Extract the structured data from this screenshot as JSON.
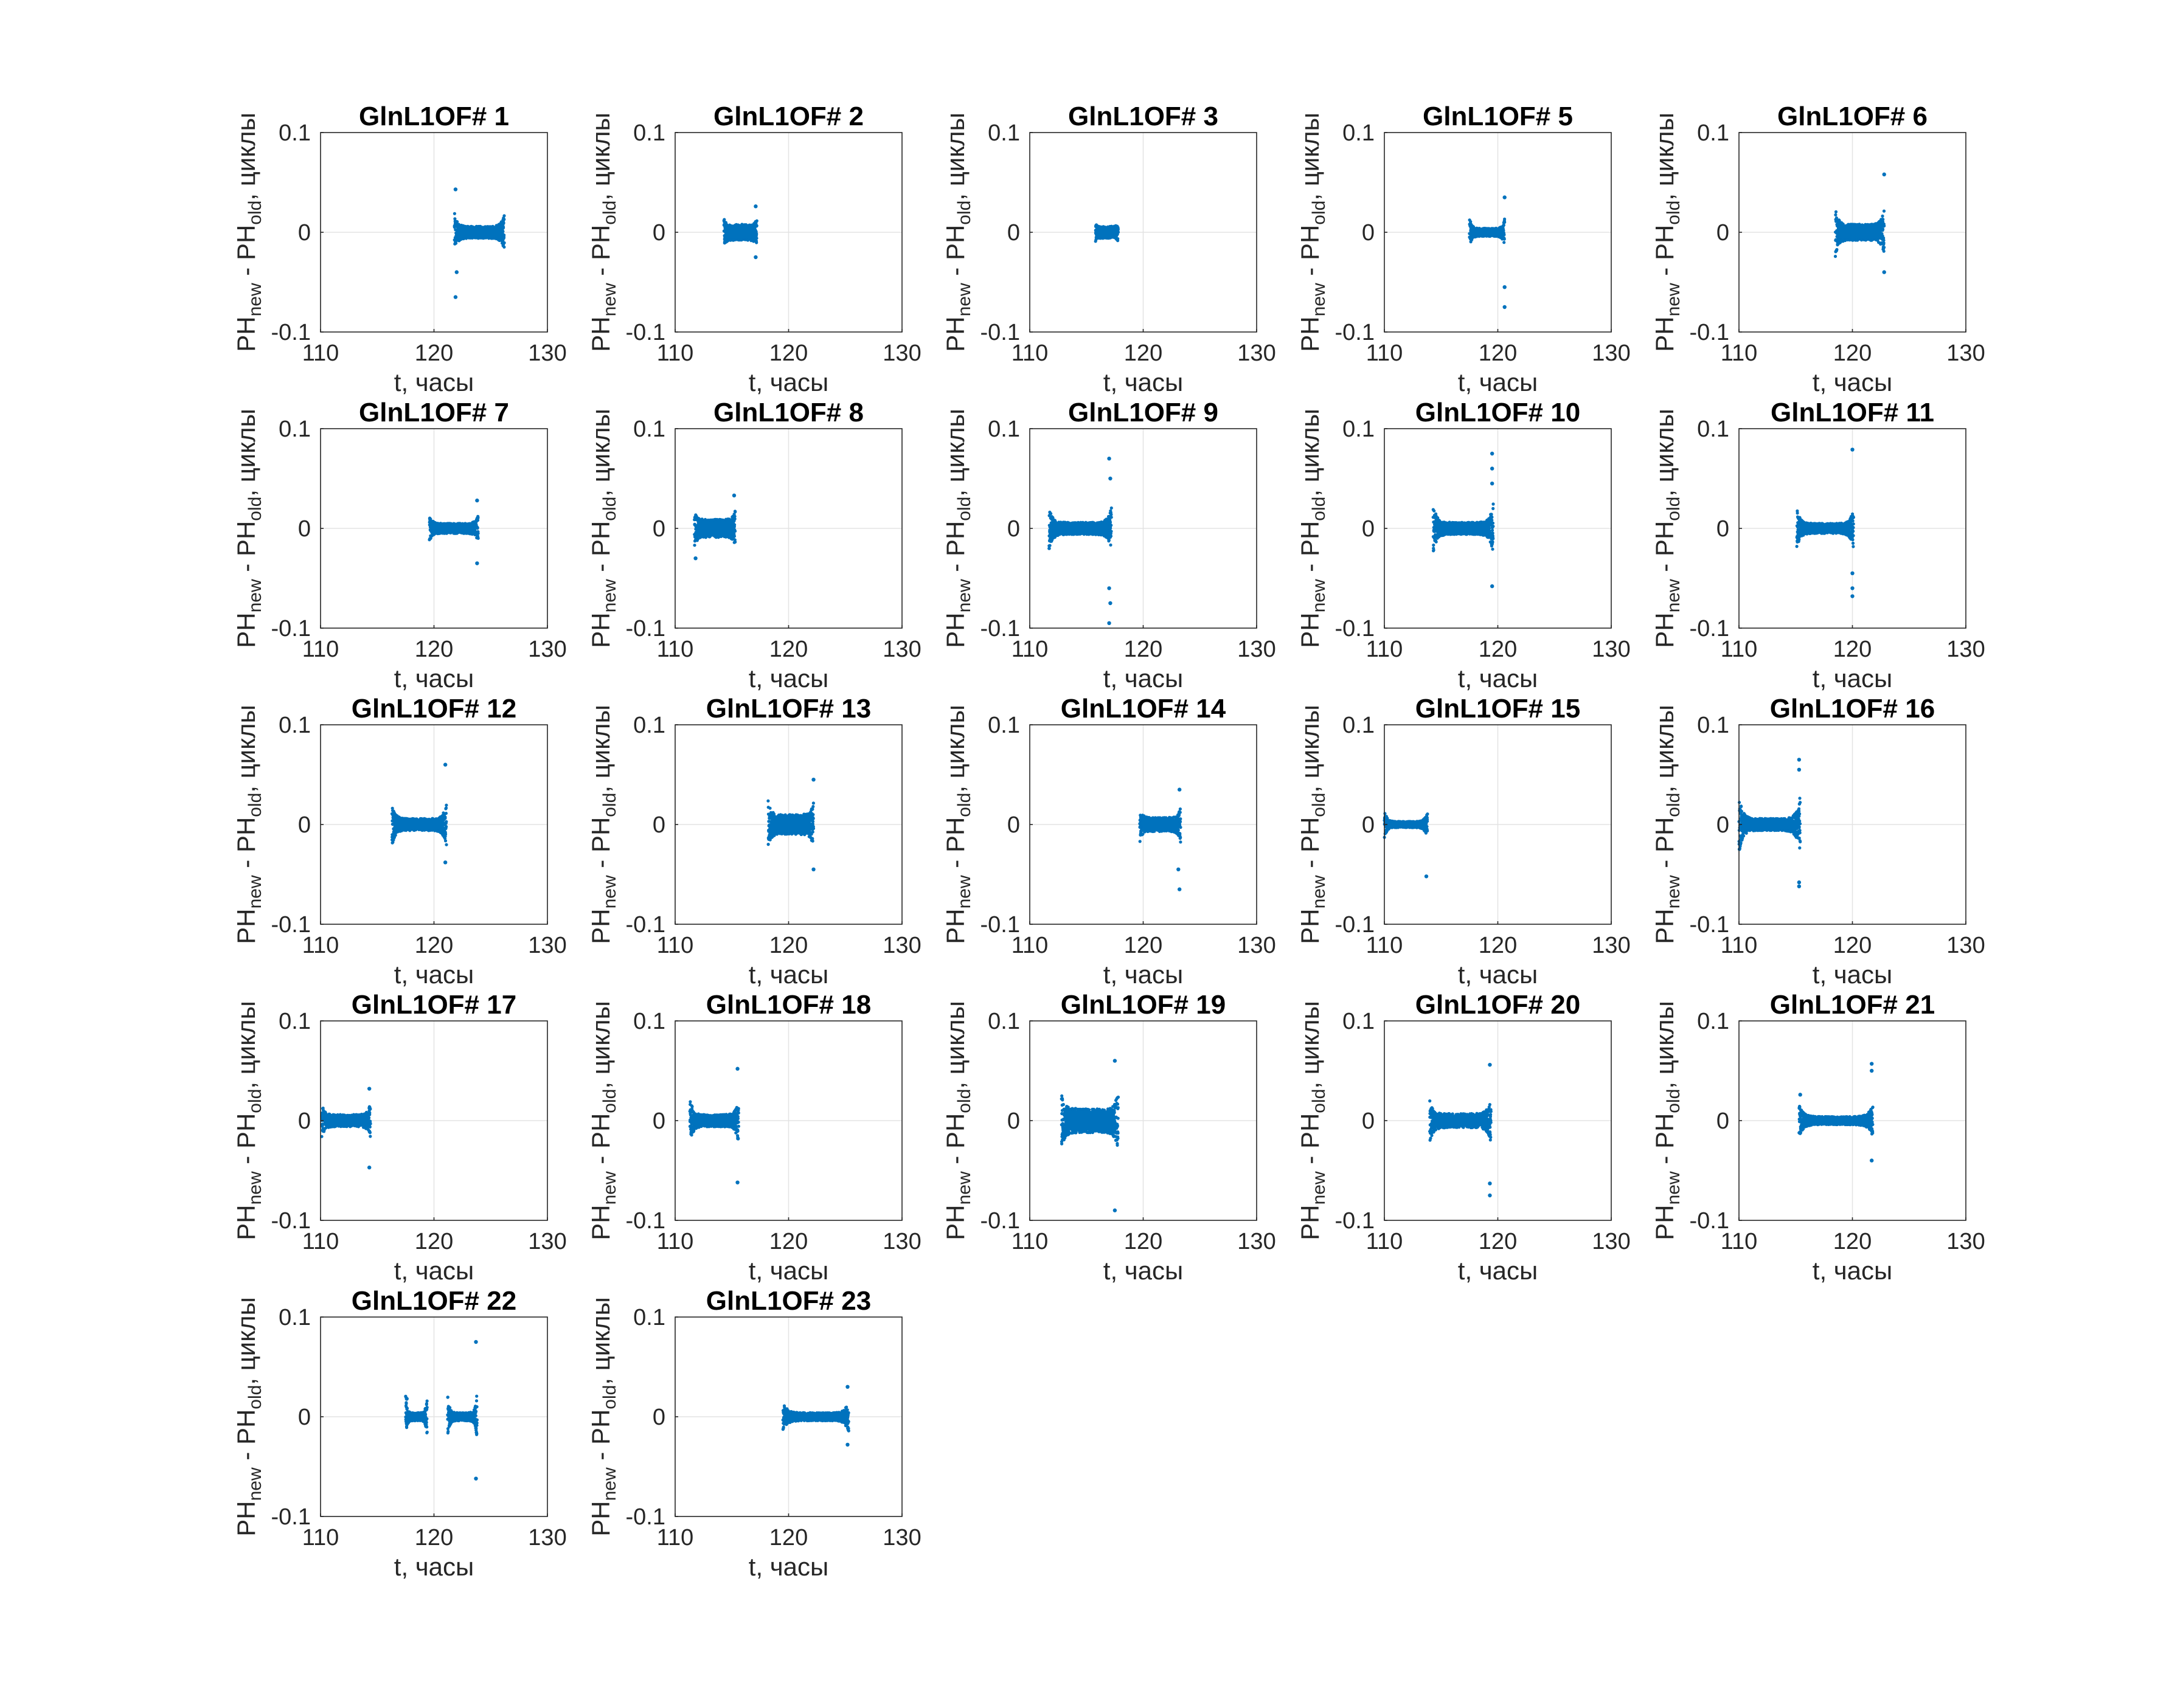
{
  "figure": {
    "background": "#ffffff",
    "marker_color": "#0072BD",
    "axis_color": "#262626",
    "grid_color": "#e3e3e3"
  },
  "chart_data": [
    {
      "type": "scatter",
      "title": "GlnL1OF# 1",
      "xlabel": "t, часы",
      "xlim": [
        110,
        130
      ],
      "ylim": [
        -0.1,
        0.1
      ],
      "x_ticks": [
        "110",
        "120",
        "130"
      ],
      "y_ticks": [
        "-0.1",
        "0",
        "0.1"
      ],
      "grid": true,
      "t_start": 121.8,
      "t_end": 126.2,
      "band": 0.006,
      "edge_band": 0.02,
      "outliers": [
        [
          121.9,
          0.043
        ],
        [
          121.9,
          -0.065
        ],
        [
          122.0,
          -0.04
        ]
      ]
    },
    {
      "type": "scatter",
      "title": "GlnL1OF# 2",
      "xlabel": "t, часы",
      "xlim": [
        110,
        130
      ],
      "ylim": [
        -0.1,
        0.1
      ],
      "x_ticks": [
        "110",
        "120",
        "130"
      ],
      "y_ticks": [
        "-0.1",
        "0",
        "0.1"
      ],
      "grid": true,
      "t_start": 114.3,
      "t_end": 117.2,
      "band": 0.008,
      "edge_band": 0.015,
      "outliers": [
        [
          117.1,
          0.026
        ],
        [
          117.1,
          -0.025
        ]
      ]
    },
    {
      "type": "scatter",
      "title": "GlnL1OF# 3",
      "xlabel": "t, часы",
      "xlabel_prefix": "t",
      "xlim": [
        110,
        130
      ],
      "ylim": [
        -0.1,
        0.1
      ],
      "x_ticks": [
        "110",
        "120",
        "130"
      ],
      "y_ticks": [
        "-0.1",
        "0",
        "0.1"
      ],
      "grid": true,
      "t_start": 115.8,
      "t_end": 117.8,
      "band": 0.006,
      "edge_band": 0.01,
      "outliers": []
    },
    {
      "type": "scatter",
      "title": "GlnL1OF# 5",
      "xlabel": "t, часы",
      "xlim": [
        110,
        130
      ],
      "ylim": [
        -0.1,
        0.1
      ],
      "x_ticks": [
        "110",
        "120",
        "130"
      ],
      "y_ticks": [
        "-0.1",
        "0",
        "0.1"
      ],
      "grid": true,
      "t_start": 117.5,
      "t_end": 120.6,
      "band": 0.004,
      "edge_band": 0.016,
      "outliers": [
        [
          120.6,
          0.035
        ],
        [
          120.6,
          -0.055
        ],
        [
          120.6,
          -0.075
        ]
      ]
    },
    {
      "type": "scatter",
      "title": "GlnL1OF# 6",
      "xlabel": "t, часы",
      "xlim": [
        110,
        130
      ],
      "ylim": [
        -0.1,
        0.1
      ],
      "x_ticks": [
        "110",
        "120",
        "130"
      ],
      "y_ticks": [
        "-0.1",
        "0",
        "0.1"
      ],
      "grid": true,
      "t_start": 118.5,
      "t_end": 122.8,
      "band": 0.008,
      "edge_band": 0.025,
      "outliers": [
        [
          122.8,
          0.058
        ],
        [
          122.8,
          -0.04
        ]
      ]
    },
    {
      "type": "scatter",
      "title": "GlnL1OF# 7",
      "xlabel": "t, часы",
      "xlim": [
        110,
        130
      ],
      "ylim": [
        -0.1,
        0.1
      ],
      "x_ticks": [
        "110",
        "120",
        "130"
      ],
      "y_ticks": [
        "-0.1",
        "0",
        "0.1"
      ],
      "grid": true,
      "t_start": 119.6,
      "t_end": 123.9,
      "band": 0.005,
      "edge_band": 0.014,
      "outliers": [
        [
          123.8,
          0.028
        ],
        [
          123.8,
          -0.035
        ]
      ]
    },
    {
      "type": "scatter",
      "title": "GlnL1OF# 8",
      "xlabel": "t, часы",
      "xlim": [
        110,
        130
      ],
      "ylim": [
        -0.1,
        0.1
      ],
      "x_ticks": [
        "110",
        "120",
        "130"
      ],
      "y_ticks": [
        "-0.1",
        "0",
        "0.1"
      ],
      "grid": true,
      "t_start": 111.7,
      "t_end": 115.3,
      "band": 0.009,
      "edge_band": 0.02,
      "outliers": [
        [
          115.2,
          0.033
        ],
        [
          111.8,
          -0.03
        ]
      ]
    },
    {
      "type": "scatter",
      "title": "GlnL1OF# 9",
      "xlabel": "t, часы",
      "xlim": [
        110,
        130
      ],
      "ylim": [
        -0.1,
        0.1
      ],
      "x_ticks": [
        "110",
        "120",
        "130"
      ],
      "y_ticks": [
        "-0.1",
        "0",
        "0.1"
      ],
      "grid": true,
      "t_start": 111.7,
      "t_end": 117.2,
      "band": 0.006,
      "edge_band": 0.022,
      "outliers": [
        [
          117.0,
          0.07
        ],
        [
          117.1,
          0.05
        ],
        [
          117.0,
          -0.06
        ],
        [
          117.1,
          -0.075
        ],
        [
          117.0,
          -0.095
        ]
      ]
    },
    {
      "type": "scatter",
      "title": "GlnL1OF# 10",
      "xlabel": "t, часы",
      "xlim": [
        110,
        130
      ],
      "ylim": [
        -0.1,
        0.1
      ],
      "x_ticks": [
        "110",
        "120",
        "130"
      ],
      "y_ticks": [
        "-0.1",
        "0",
        "0.1"
      ],
      "grid": true,
      "t_start": 114.3,
      "t_end": 119.6,
      "band": 0.006,
      "edge_band": 0.025,
      "outliers": [
        [
          119.5,
          0.075
        ],
        [
          119.5,
          0.06
        ],
        [
          119.5,
          0.045
        ],
        [
          119.5,
          -0.058
        ]
      ]
    },
    {
      "type": "scatter",
      "title": "GlnL1OF# 11",
      "xlabel": "t, часы",
      "xlim": [
        110,
        130
      ],
      "ylim": [
        -0.1,
        0.1
      ],
      "x_ticks": [
        "110",
        "120",
        "130"
      ],
      "y_ticks": [
        "-0.1",
        "0",
        "0.1"
      ],
      "grid": true,
      "t_start": 115.1,
      "t_end": 120.1,
      "band": 0.005,
      "edge_band": 0.02,
      "outliers": [
        [
          120.0,
          0.079
        ],
        [
          120.0,
          -0.06
        ],
        [
          120.0,
          -0.068
        ],
        [
          120.0,
          -0.045
        ]
      ]
    },
    {
      "type": "scatter",
      "title": "GlnL1OF# 12",
      "xlabel": "t, часы",
      "xlim": [
        110,
        130
      ],
      "ylim": [
        -0.1,
        0.1
      ],
      "x_ticks": [
        "110",
        "120",
        "130"
      ],
      "y_ticks": [
        "-0.1",
        "0",
        "0.1"
      ],
      "grid": true,
      "t_start": 116.3,
      "t_end": 121.1,
      "band": 0.006,
      "edge_band": 0.022,
      "outliers": [
        [
          121.0,
          0.06
        ],
        [
          121.0,
          -0.038
        ]
      ]
    },
    {
      "type": "scatter",
      "title": "GlnL1OF# 13",
      "xlabel": "t, часы",
      "xlim": [
        110,
        130
      ],
      "ylim": [
        -0.1,
        0.1
      ],
      "x_ticks": [
        "110",
        "120",
        "130"
      ],
      "y_ticks": [
        "-0.1",
        "0",
        "0.1"
      ],
      "grid": true,
      "t_start": 118.2,
      "t_end": 122.2,
      "band": 0.01,
      "edge_band": 0.025,
      "outliers": [
        [
          122.2,
          0.045
        ],
        [
          122.2,
          -0.045
        ]
      ]
    },
    {
      "type": "scatter",
      "title": "GlnL1OF# 14",
      "xlabel": "t, часы",
      "xlim": [
        110,
        130
      ],
      "ylim": [
        -0.1,
        0.1
      ],
      "x_ticks": [
        "110",
        "120",
        "130"
      ],
      "y_ticks": [
        "-0.1",
        "0",
        "0.1"
      ],
      "grid": true,
      "t_start": 119.7,
      "t_end": 123.3,
      "band": 0.007,
      "edge_band": 0.018,
      "outliers": [
        [
          123.2,
          0.035
        ],
        [
          123.2,
          -0.065
        ],
        [
          123.1,
          -0.045
        ]
      ]
    },
    {
      "type": "scatter",
      "title": "GlnL1OF# 15",
      "xlabel": "t, часы",
      "xlim": [
        110,
        130
      ],
      "ylim": [
        -0.1,
        0.1
      ],
      "x_ticks": [
        "110",
        "120",
        "130"
      ],
      "y_ticks": [
        "-0.1",
        "0",
        "0.1"
      ],
      "grid": true,
      "t_start": 110.0,
      "t_end": 113.8,
      "band": 0.003,
      "edge_band": 0.015,
      "outliers": [
        [
          113.7,
          -0.052
        ]
      ]
    },
    {
      "type": "scatter",
      "title": "GlnL1OF# 16",
      "xlabel": "t, часы",
      "xlim": [
        110,
        130
      ],
      "ylim": [
        -0.1,
        0.1
      ],
      "x_ticks": [
        "110",
        "120",
        "130"
      ],
      "y_ticks": [
        "-0.1",
        "0",
        "0.1"
      ],
      "grid": true,
      "t_start": 110.0,
      "t_end": 115.4,
      "band": 0.006,
      "edge_band": 0.03,
      "outliers": [
        [
          115.3,
          0.065
        ],
        [
          115.3,
          0.055
        ],
        [
          115.3,
          -0.058
        ],
        [
          115.3,
          -0.062
        ]
      ]
    },
    {
      "type": "scatter",
      "title": "GlnL1OF# 17",
      "xlabel": "t, часы",
      "xlim": [
        110,
        130
      ],
      "ylim": [
        -0.1,
        0.1
      ],
      "x_ticks": [
        "110",
        "120",
        "130"
      ],
      "y_ticks": [
        "-0.1",
        "0",
        "0.1"
      ],
      "grid": true,
      "t_start": 110.1,
      "t_end": 114.4,
      "band": 0.006,
      "edge_band": 0.018,
      "outliers": [
        [
          114.3,
          0.032
        ],
        [
          114.3,
          -0.047
        ]
      ]
    },
    {
      "type": "scatter",
      "title": "GlnL1OF# 18",
      "xlabel": "t, часы",
      "xlim": [
        110,
        130
      ],
      "ylim": [
        -0.1,
        0.1
      ],
      "x_ticks": [
        "110",
        "120",
        "130"
      ],
      "y_ticks": [
        "-0.1",
        "0",
        "0.1"
      ],
      "grid": true,
      "t_start": 111.3,
      "t_end": 115.6,
      "band": 0.006,
      "edge_band": 0.025,
      "outliers": [
        [
          115.5,
          0.052
        ],
        [
          115.5,
          -0.062
        ]
      ]
    },
    {
      "type": "scatter",
      "title": "GlnL1OF# 19",
      "xlabel": "t, часы",
      "xlim": [
        110,
        130
      ],
      "ylim": [
        -0.1,
        0.1
      ],
      "x_ticks": [
        "110",
        "120",
        "130"
      ],
      "y_ticks": [
        "-0.1",
        "0",
        "0.1"
      ],
      "grid": true,
      "t_start": 112.8,
      "t_end": 117.8,
      "band": 0.012,
      "edge_band": 0.03,
      "outliers": [
        [
          117.5,
          0.06
        ],
        [
          117.5,
          -0.09
        ]
      ]
    },
    {
      "type": "scatter",
      "title": "GlnL1OF# 20",
      "xlabel": "t, часы",
      "xlim": [
        110,
        130
      ],
      "ylim": [
        -0.1,
        0.1
      ],
      "x_ticks": [
        "110",
        "120",
        "130"
      ],
      "y_ticks": [
        "-0.1",
        "0",
        "0.1"
      ],
      "grid": true,
      "t_start": 114.0,
      "t_end": 119.4,
      "band": 0.007,
      "edge_band": 0.022,
      "outliers": [
        [
          119.3,
          0.056
        ],
        [
          119.3,
          -0.063
        ],
        [
          119.3,
          -0.075
        ]
      ]
    },
    {
      "type": "scatter",
      "title": "GlnL1OF# 21",
      "xlabel": "t, часы",
      "xlim": [
        110,
        130
      ],
      "ylim": [
        -0.1,
        0.1
      ],
      "x_ticks": [
        "110",
        "120",
        "130"
      ],
      "y_ticks": [
        "-0.1",
        "0",
        "0.1"
      ],
      "grid": true,
      "t_start": 115.3,
      "t_end": 121.8,
      "band": 0.004,
      "edge_band": 0.016,
      "outliers": [
        [
          121.7,
          0.057
        ],
        [
          121.7,
          0.05
        ],
        [
          121.7,
          -0.04
        ],
        [
          115.4,
          0.026
        ]
      ]
    },
    {
      "type": "scatter",
      "title": "GlnL1OF# 22",
      "xlabel": "t, часы",
      "xlim": [
        110,
        130
      ],
      "ylim": [
        -0.1,
        0.1
      ],
      "x_ticks": [
        "110",
        "120",
        "130"
      ],
      "y_ticks": [
        "-0.1",
        "0",
        "0.1"
      ],
      "grid": true,
      "segments": [
        [
          117.5,
          119.4
        ],
        [
          121.2,
          123.8
        ]
      ],
      "t_start": 117.5,
      "t_end": 123.8,
      "band": 0.004,
      "edge_band": 0.025,
      "outliers": [
        [
          123.7,
          0.075
        ],
        [
          123.7,
          -0.062
        ],
        [
          117.6,
          0.018
        ]
      ]
    },
    {
      "type": "scatter",
      "title": "GlnL1OF# 23",
      "xlabel": "t, часы",
      "xlim": [
        110,
        130
      ],
      "ylim": [
        -0.1,
        0.1
      ],
      "x_ticks": [
        "110",
        "120",
        "130"
      ],
      "y_ticks": [
        "-0.1",
        "0",
        "0.1"
      ],
      "grid": true,
      "t_start": 119.5,
      "t_end": 125.3,
      "band": 0.004,
      "edge_band": 0.016,
      "outliers": [
        [
          125.2,
          0.03
        ],
        [
          125.2,
          -0.028
        ]
      ]
    }
  ],
  "ylabel_parts": {
    "ph": "PH",
    "new_sub": "new",
    "old_sub": "old",
    "dash": " - ",
    "unit": ", циклы"
  },
  "xlabel_visible": [
    false,
    false,
    false,
    false,
    false,
    false,
    false,
    false,
    false,
    false,
    false,
    false,
    false,
    false,
    false,
    false,
    false,
    true,
    true,
    true,
    true,
    true
  ]
}
